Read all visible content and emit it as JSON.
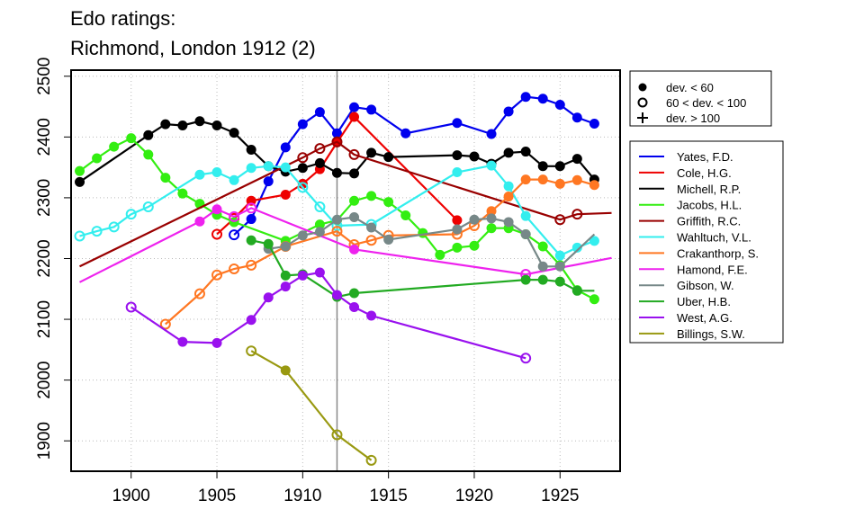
{
  "chart_data": {
    "type": "line",
    "title": "Edo ratings:",
    "subtitle": "Richmond, London 1912 (2)",
    "xlabel": "",
    "ylabel": "",
    "xlim": [
      1896.5,
      1928.5
    ],
    "ylim": [
      1850,
      2510
    ],
    "x_ticks": [
      1900,
      1905,
      1910,
      1915,
      1920,
      1925
    ],
    "y_ticks": [
      1900,
      2000,
      2100,
      2200,
      2300,
      2400,
      2500
    ],
    "grid": true,
    "reference_line_x": 1912,
    "marker_legend": [
      {
        "symbol": "filled-circle",
        "label": "dev. < 60"
      },
      {
        "symbol": "open-circle",
        "label": "60 < dev. < 100"
      },
      {
        "symbol": "plus",
        "label": "dev. > 100"
      }
    ],
    "series": [
      {
        "name": "Yates, F.D.",
        "color": "#0000ee",
        "points": [
          [
            1906,
            2239,
            "o"
          ],
          [
            1907,
            2265,
            "f"
          ],
          [
            1908,
            2327,
            "f"
          ],
          [
            1909,
            2383,
            "f"
          ],
          [
            1910,
            2421,
            "f"
          ],
          [
            1911,
            2441,
            "f"
          ],
          [
            1912,
            2406,
            "f"
          ],
          [
            1913,
            2449,
            "f"
          ],
          [
            1914,
            2445,
            "f"
          ],
          [
            1916,
            2406,
            "f"
          ],
          [
            1919,
            2423,
            "f"
          ],
          [
            1921,
            2405,
            "f"
          ],
          [
            1922,
            2442,
            "f"
          ],
          [
            1923,
            2466,
            "f"
          ],
          [
            1924,
            2463,
            "f"
          ],
          [
            1925,
            2453,
            "f"
          ],
          [
            1926,
            2432,
            "f"
          ],
          [
            1927,
            2422,
            "f"
          ]
        ]
      },
      {
        "name": "Cole, H.G.",
        "color": "#ee0000",
        "points": [
          [
            1905,
            2240,
            "o"
          ],
          [
            1906,
            2266,
            "o"
          ],
          [
            1907,
            2295,
            "f"
          ],
          [
            1909,
            2305,
            "f"
          ],
          [
            1910,
            2323,
            "f"
          ],
          [
            1911,
            2347,
            "f"
          ],
          [
            1912,
            2391,
            "f"
          ],
          [
            1913,
            2433,
            "f"
          ],
          [
            1919,
            2263,
            "f"
          ]
        ]
      },
      {
        "name": "Michell, R.P.",
        "color": "#000000",
        "points": [
          [
            1897,
            2326,
            "f"
          ],
          [
            1901,
            2403,
            "f"
          ],
          [
            1902,
            2421,
            "f"
          ],
          [
            1903,
            2419,
            "f"
          ],
          [
            1904,
            2426,
            "f"
          ],
          [
            1905,
            2419,
            "f"
          ],
          [
            1906,
            2407,
            "f"
          ],
          [
            1907,
            2379,
            "f"
          ],
          [
            1908,
            2352,
            "f"
          ],
          [
            1909,
            2343,
            "f"
          ],
          [
            1910,
            2349,
            "f"
          ],
          [
            1911,
            2357,
            "f"
          ],
          [
            1912,
            2341,
            "f"
          ],
          [
            1913,
            2340,
            "f"
          ],
          [
            1914,
            2374,
            "f"
          ],
          [
            1915,
            2367,
            "f"
          ],
          [
            1919,
            2370,
            "f"
          ],
          [
            1920,
            2368,
            "f"
          ],
          [
            1921,
            2356,
            "f"
          ],
          [
            1922,
            2374,
            "f"
          ],
          [
            1923,
            2376,
            "f"
          ],
          [
            1924,
            2352,
            "f"
          ],
          [
            1925,
            2352,
            "f"
          ],
          [
            1926,
            2364,
            "f"
          ],
          [
            1927,
            2330,
            "f"
          ]
        ]
      },
      {
        "name": "Jacobs, H.L.",
        "color": "#33ee11",
        "points": [
          [
            1897,
            2344,
            "f"
          ],
          [
            1898,
            2365,
            "f"
          ],
          [
            1899,
            2384,
            "f"
          ],
          [
            1900,
            2398,
            "f"
          ],
          [
            1901,
            2371,
            "f"
          ],
          [
            1902,
            2333,
            "f"
          ],
          [
            1903,
            2307,
            "f"
          ],
          [
            1904,
            2290,
            "f"
          ],
          [
            1905,
            2272,
            "f"
          ],
          [
            1906,
            2260,
            "f"
          ],
          [
            1909,
            2229,
            "f"
          ],
          [
            1911,
            2256,
            "f"
          ],
          [
            1912,
            2263,
            "f"
          ],
          [
            1913,
            2295,
            "f"
          ],
          [
            1914,
            2303,
            "f"
          ],
          [
            1915,
            2293,
            "f"
          ],
          [
            1916,
            2271,
            "f"
          ],
          [
            1917,
            2242,
            "f"
          ],
          [
            1918,
            2206,
            "f"
          ],
          [
            1919,
            2218,
            "f"
          ],
          [
            1920,
            2221,
            "f"
          ],
          [
            1921,
            2250,
            "f"
          ],
          [
            1922,
            2250,
            "f"
          ],
          [
            1923,
            2240,
            "f"
          ],
          [
            1924,
            2220,
            "f"
          ],
          [
            1925,
            2189,
            "f"
          ],
          [
            1926,
            2148,
            "f"
          ],
          [
            1927,
            2133,
            "f"
          ]
        ]
      },
      {
        "name": "Griffith, R.C.",
        "color": "#990000",
        "points": [
          [
            1897,
            2187,
            "n"
          ],
          [
            1910,
            2366,
            "o"
          ],
          [
            1911,
            2381,
            "o"
          ],
          [
            1912,
            2392,
            "o"
          ],
          [
            1913,
            2371,
            "o"
          ],
          [
            1925,
            2264,
            "o"
          ],
          [
            1926,
            2273,
            "o"
          ],
          [
            1928,
            2275,
            "n"
          ]
        ]
      },
      {
        "name": "Wahltuch, V.L.",
        "color": "#33eeee",
        "points": [
          [
            1897,
            2237,
            "o"
          ],
          [
            1898,
            2245,
            "o"
          ],
          [
            1899,
            2252,
            "o"
          ],
          [
            1900,
            2273,
            "o"
          ],
          [
            1901,
            2285,
            "o"
          ],
          [
            1904,
            2338,
            "f"
          ],
          [
            1905,
            2342,
            "f"
          ],
          [
            1906,
            2329,
            "f"
          ],
          [
            1907,
            2349,
            "f"
          ],
          [
            1908,
            2352,
            "f"
          ],
          [
            1909,
            2350,
            "f"
          ],
          [
            1910,
            2317,
            "o"
          ],
          [
            1911,
            2285,
            "o"
          ],
          [
            1912,
            2254,
            "o"
          ],
          [
            1914,
            2256,
            "o"
          ],
          [
            1919,
            2342,
            "f"
          ],
          [
            1921,
            2353,
            "f"
          ],
          [
            1922,
            2319,
            "f"
          ],
          [
            1923,
            2270,
            "f"
          ],
          [
            1925,
            2205,
            "f"
          ],
          [
            1926,
            2218,
            "f"
          ],
          [
            1927,
            2229,
            "f"
          ]
        ]
      },
      {
        "name": "Crakanthorp, S.",
        "color": "#ff7722",
        "points": [
          [
            1902,
            2092,
            "o"
          ],
          [
            1904,
            2142,
            "o"
          ],
          [
            1905,
            2173,
            "o"
          ],
          [
            1906,
            2183,
            "o"
          ],
          [
            1907,
            2189,
            "o"
          ],
          [
            1909,
            2220,
            "o"
          ],
          [
            1912,
            2245,
            "o"
          ],
          [
            1913,
            2223,
            "o"
          ],
          [
            1914,
            2230,
            "o"
          ],
          [
            1915,
            2238,
            "o"
          ],
          [
            1919,
            2240,
            "o"
          ],
          [
            1920,
            2254,
            "o"
          ],
          [
            1921,
            2278,
            "f"
          ],
          [
            1922,
            2302,
            "f"
          ],
          [
            1923,
            2330,
            "f"
          ],
          [
            1924,
            2330,
            "f"
          ],
          [
            1925,
            2323,
            "f"
          ],
          [
            1926,
            2329,
            "f"
          ],
          [
            1927,
            2321,
            "f"
          ]
        ]
      },
      {
        "name": "Hamond, F.E.",
        "color": "#ee22ee",
        "points": [
          [
            1897,
            2161,
            "n"
          ],
          [
            1904,
            2261,
            "f"
          ],
          [
            1905,
            2281,
            "f"
          ],
          [
            1906,
            2269,
            "o"
          ],
          [
            1907,
            2283,
            "o"
          ],
          [
            1913,
            2215,
            "f"
          ],
          [
            1923,
            2174,
            "o"
          ],
          [
            1928,
            2201,
            "n"
          ]
        ]
      },
      {
        "name": "Gibson, W.",
        "color": "#778888",
        "points": [
          [
            1908,
            2216,
            "f"
          ],
          [
            1909,
            2220,
            "f"
          ],
          [
            1910,
            2238,
            "f"
          ],
          [
            1911,
            2244,
            "f"
          ],
          [
            1912,
            2264,
            "f"
          ],
          [
            1913,
            2268,
            "f"
          ],
          [
            1914,
            2251,
            "f"
          ],
          [
            1915,
            2231,
            "f"
          ],
          [
            1919,
            2248,
            "f"
          ],
          [
            1920,
            2264,
            "f"
          ],
          [
            1921,
            2266,
            "f"
          ],
          [
            1922,
            2260,
            "f"
          ],
          [
            1923,
            2240,
            "f"
          ],
          [
            1924,
            2187,
            "f"
          ],
          [
            1925,
            2187,
            "f"
          ],
          [
            1927,
            2240,
            "n"
          ]
        ]
      },
      {
        "name": "Uber, H.B.",
        "color": "#22aa22",
        "points": [
          [
            1907,
            2230,
            "f"
          ],
          [
            1908,
            2224,
            "f"
          ],
          [
            1909,
            2172,
            "f"
          ],
          [
            1910,
            2174,
            "f"
          ],
          [
            1912,
            2137,
            "f"
          ],
          [
            1913,
            2143,
            "f"
          ],
          [
            1923,
            2165,
            "f"
          ],
          [
            1924,
            2165,
            "f"
          ],
          [
            1925,
            2162,
            "f"
          ],
          [
            1926,
            2147,
            "f"
          ],
          [
            1927,
            2147,
            "n"
          ]
        ]
      },
      {
        "name": "West, A.G.",
        "color": "#9911ee",
        "points": [
          [
            1900,
            2120,
            "o"
          ],
          [
            1903,
            2063,
            "f"
          ],
          [
            1905,
            2061,
            "f"
          ],
          [
            1907,
            2099,
            "f"
          ],
          [
            1908,
            2136,
            "f"
          ],
          [
            1909,
            2154,
            "f"
          ],
          [
            1910,
            2172,
            "f"
          ],
          [
            1911,
            2177,
            "f"
          ],
          [
            1912,
            2140,
            "f"
          ],
          [
            1913,
            2120,
            "f"
          ],
          [
            1914,
            2106,
            "f"
          ],
          [
            1923,
            2036,
            "o"
          ]
        ]
      },
      {
        "name": "Billings, S.W.",
        "color": "#999911",
        "points": [
          [
            1907,
            2048,
            "o"
          ],
          [
            1909,
            2016,
            "f"
          ],
          [
            1912,
            1910,
            "o"
          ],
          [
            1914,
            1868,
            "o"
          ]
        ]
      }
    ]
  }
}
